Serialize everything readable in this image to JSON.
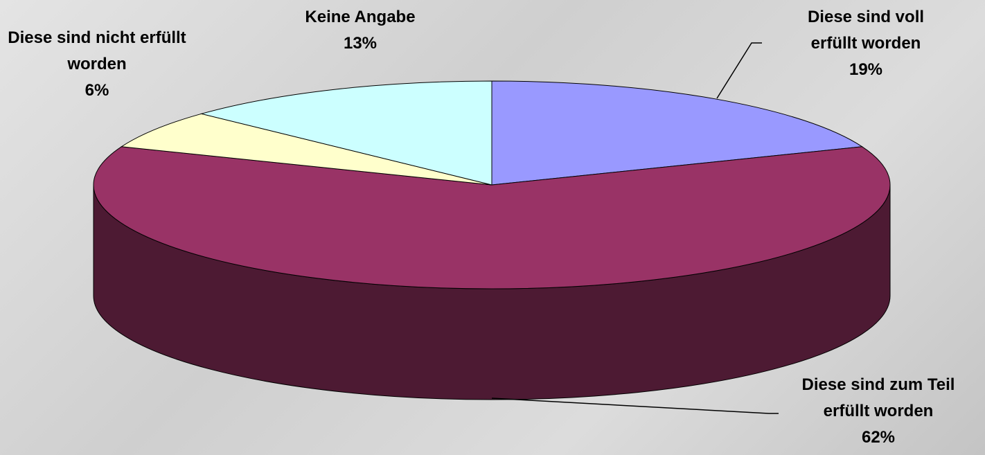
{
  "chart_data": {
    "type": "pie",
    "categories": [
      "Diese sind voll erfüllt worden",
      "Diese sind zum Teil erfüllt worden",
      "Diese sind nicht erfüllt worden",
      "Keine Angabe"
    ],
    "values": [
      19,
      62,
      6,
      13
    ],
    "value_labels": [
      "19%",
      "62%",
      "6%",
      "13%"
    ],
    "colors": [
      "#9999ff",
      "#993366",
      "#ffffcc",
      "#ccffff"
    ]
  }
}
